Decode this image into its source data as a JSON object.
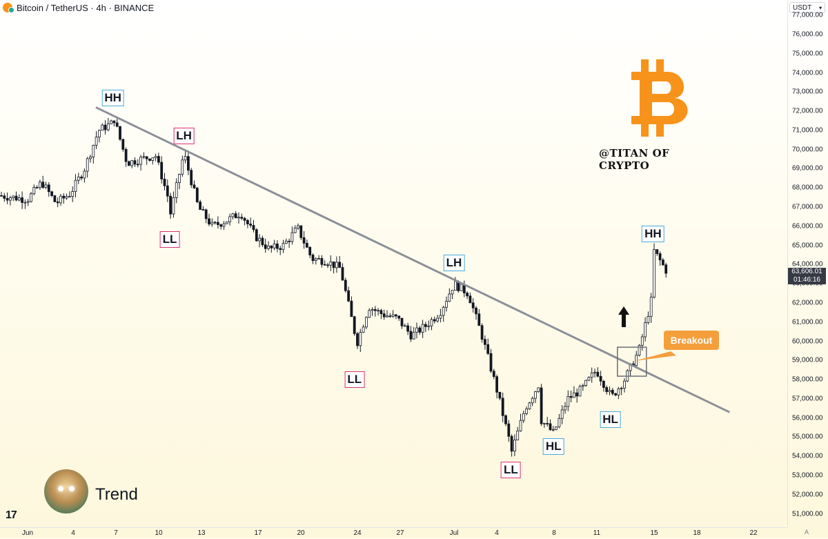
{
  "header": {
    "symbol_title": "Bitcoin / TetherUS · 4h · BINANCE",
    "currency": "USDT"
  },
  "current_price": {
    "price": "63,606.01",
    "countdown": "01:46:16"
  },
  "watermark": {
    "handle": "@TITAN OF CRYPTO",
    "logo": "bitcoin-logo"
  },
  "footer": {
    "caption": "Trend",
    "platform_logo": "tradingview-logo",
    "auto_label": "A"
  },
  "colors": {
    "trendline": "#8c8f99",
    "candles": "#131722",
    "breakout": "#f49f3b",
    "label_blue": "#49a8dc",
    "label_red": "#d6336c",
    "bitcoin": "#f7931a"
  },
  "chart_data": {
    "type": "candlestick",
    "title": "Bitcoin / TetherUS · 4h · BINANCE",
    "ylim": [
      50300,
      77800
    ],
    "x_tick_labels": [
      "Jun",
      "4",
      "7",
      "10",
      "13",
      "17",
      "20",
      "24",
      "27",
      "Jul",
      "4",
      "8",
      "11",
      "15",
      "18",
      "22"
    ],
    "y_tick_labels": [
      "51,000.00",
      "52,000.00",
      "53,000.00",
      "54,000.00",
      "55,000.00",
      "56,000.00",
      "57,000.00",
      "58,000.00",
      "59,000.00",
      "60,000.00",
      "61,000.00",
      "62,000.00",
      "63,000.00",
      "64,000.00",
      "65,000.00",
      "66,000.00",
      "67,000.00",
      "68,000.00",
      "69,000.00",
      "70,000.00",
      "71,000.00",
      "72,000.00",
      "73,000.00",
      "74,000.00",
      "75,000.00",
      "76,000.00",
      "77,000.00"
    ],
    "y_tick_values": [
      51000,
      52000,
      53000,
      54000,
      55000,
      56000,
      57000,
      58000,
      59000,
      60000,
      61000,
      62000,
      63000,
      64000,
      65000,
      66000,
      67000,
      68000,
      69000,
      70000,
      71000,
      72000,
      73000,
      74000,
      75000,
      76000,
      77000
    ],
    "path_points": [
      {
        "date": "Jun 1",
        "price": 67400
      },
      {
        "date": "Jun 2",
        "price": 68300
      },
      {
        "date": "Jun 3",
        "price": 67200
      },
      {
        "date": "Jun 4",
        "price": 67700
      },
      {
        "date": "Jun 5",
        "price": 69000
      },
      {
        "date": "Jun 6",
        "price": 71000
      },
      {
        "date": "Jun 7",
        "price": 71400
      },
      {
        "date": "Jun 7",
        "price": 71800
      },
      {
        "date": "Jun 8",
        "price": 69300
      },
      {
        "date": "Jun 9",
        "price": 69500
      },
      {
        "date": "Jun 10",
        "price": 69700
      },
      {
        "date": "Jun 11",
        "price": 67200
      },
      {
        "date": "Jun 11",
        "price": 66500
      },
      {
        "date": "Jun 12",
        "price": 69800
      },
      {
        "date": "Jun 13",
        "price": 67000
      },
      {
        "date": "Jun 14",
        "price": 66000
      },
      {
        "date": "Jun 15",
        "price": 66300
      },
      {
        "date": "Jun 16",
        "price": 66700
      },
      {
        "date": "Jun 17",
        "price": 65500
      },
      {
        "date": "Jun 18",
        "price": 64800
      },
      {
        "date": "Jun 19",
        "price": 65000
      },
      {
        "date": "Jun 20",
        "price": 65900
      },
      {
        "date": "Jun 21",
        "price": 64300
      },
      {
        "date": "Jun 22",
        "price": 64200
      },
      {
        "date": "Jun 23",
        "price": 63800
      },
      {
        "date": "Jun 24",
        "price": 60500
      },
      {
        "date": "Jun 24",
        "price": 59500
      },
      {
        "date": "Jun 25",
        "price": 61800
      },
      {
        "date": "Jun 26",
        "price": 61400
      },
      {
        "date": "Jun 27",
        "price": 61200
      },
      {
        "date": "Jun 28",
        "price": 60300
      },
      {
        "date": "Jun 29",
        "price": 60800
      },
      {
        "date": "Jun 30",
        "price": 61500
      },
      {
        "date": "Jul 1",
        "price": 63000
      },
      {
        "date": "Jul 2",
        "price": 62500
      },
      {
        "date": "Jul 3",
        "price": 60200
      },
      {
        "date": "Jul 4",
        "price": 57500
      },
      {
        "date": "Jul 5",
        "price": 54500
      },
      {
        "date": "Jul 5",
        "price": 54100
      },
      {
        "date": "Jul 6",
        "price": 56500
      },
      {
        "date": "Jul 7",
        "price": 57800
      },
      {
        "date": "Jul 7",
        "price": 56000
      },
      {
        "date": "Jul 8",
        "price": 55200
      },
      {
        "date": "Jul 9",
        "price": 57000
      },
      {
        "date": "Jul 10",
        "price": 57500
      },
      {
        "date": "Jul 11",
        "price": 58500
      },
      {
        "date": "Jul 12",
        "price": 57200
      },
      {
        "date": "Jul 12",
        "price": 57000
      },
      {
        "date": "Jul 13",
        "price": 58000
      },
      {
        "date": "Jul 14",
        "price": 59500
      },
      {
        "date": "Jul 15",
        "price": 62500
      },
      {
        "date": "Jul 15",
        "price": 64800
      },
      {
        "date": "Jul 16",
        "price": 63600
      }
    ],
    "trendline": {
      "from": {
        "date": "Jun 6",
        "price": 72200
      },
      "to": {
        "date": "Jul 20",
        "price": 56300
      }
    },
    "annotations": [
      {
        "text": "HH",
        "style": "blue",
        "date": "Jun 7",
        "price": 72700
      },
      {
        "text": "LH",
        "style": "red",
        "date": "Jun 12",
        "price": 70700
      },
      {
        "text": "LL",
        "style": "red",
        "date": "Jun 11",
        "price": 65300
      },
      {
        "text": "LL",
        "style": "red",
        "date": "Jun 24",
        "price": 58000
      },
      {
        "text": "LH",
        "style": "blue",
        "date": "Jul 1",
        "price": 64100
      },
      {
        "text": "LL",
        "style": "red",
        "date": "Jul 5",
        "price": 53300
      },
      {
        "text": "HL",
        "style": "blue",
        "date": "Jul 8",
        "price": 54500
      },
      {
        "text": "HL",
        "style": "blue",
        "date": "Jul 12",
        "price": 55900
      },
      {
        "text": "HH",
        "style": "blue",
        "date": "Jul 15",
        "price": 65600
      }
    ],
    "breakout": {
      "label": "Breakout",
      "date": "Jul 14",
      "price": 58900
    }
  }
}
